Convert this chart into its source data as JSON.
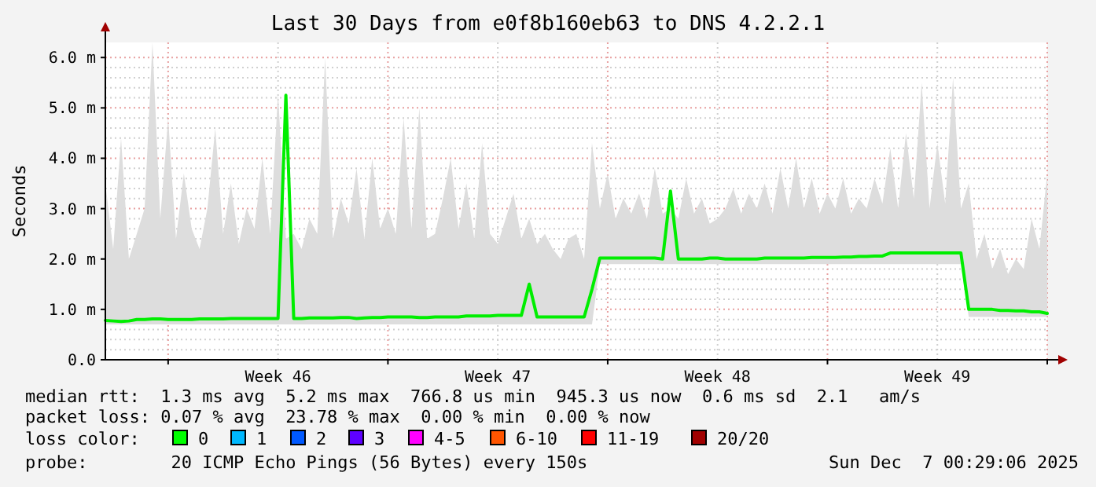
{
  "chart_data": {
    "type": "line",
    "title": "Last 30 Days from e0f8b160eb63 to DNS 4.2.2.1",
    "ylabel": "Seconds",
    "categories": [
      null,
      null,
      null,
      null,
      null,
      null,
      null,
      null,
      null,
      null,
      null,
      null,
      null,
      null,
      null,
      null,
      null,
      null,
      null,
      null,
      null,
      null,
      "Week 46",
      null,
      null,
      null,
      null,
      null,
      null,
      null,
      null,
      null,
      null,
      null,
      null,
      null,
      null,
      null,
      null,
      null,
      null,
      null,
      null,
      null,
      null,
      null,
      null,
      null,
      null,
      null,
      "Week 47",
      null,
      null,
      null,
      null,
      null,
      null,
      null,
      null,
      null,
      null,
      null,
      null,
      null,
      null,
      null,
      null,
      null,
      null,
      null,
      null,
      null,
      null,
      null,
      null,
      null,
      null,
      null,
      "Week 48",
      null,
      null,
      null,
      null,
      null,
      null,
      null,
      null,
      null,
      null,
      null,
      null,
      null,
      null,
      null,
      null,
      null,
      null,
      null,
      null,
      null,
      null,
      null,
      null,
      null,
      null,
      null,
      "Week 49",
      null,
      null,
      null,
      null,
      null,
      null,
      null,
      null,
      null,
      null,
      null,
      null,
      null,
      null
    ],
    "ylim": [
      0,
      6.3
    ],
    "yticks": [
      {
        "value": 0,
        "label": "0.0"
      },
      {
        "value": 1,
        "label": "1.0 m"
      },
      {
        "value": 2,
        "label": "2.0 m"
      },
      {
        "value": 3,
        "label": "3.0 m"
      },
      {
        "value": 4,
        "label": "4.0 m"
      },
      {
        "value": 5,
        "label": "5.0 m"
      },
      {
        "value": 6,
        "label": "6.0 m"
      }
    ],
    "grid": true,
    "series": [
      {
        "color": "#00ee00",
        "upper": [
          3.5,
          2.2,
          4.4,
          2.0,
          2.5,
          3.0,
          6.3,
          2.8,
          4.8,
          2.4,
          3.7,
          2.6,
          2.2,
          3.0,
          4.6,
          2.5,
          3.5,
          2.3,
          3.0,
          2.6,
          4.0,
          2.5,
          5.3,
          2.4,
          2.5,
          2.2,
          2.8,
          2.5,
          6.0,
          2.4,
          3.2,
          2.7,
          3.8,
          2.4,
          4.0,
          2.6,
          3.0,
          2.5,
          4.8,
          2.6,
          5.0,
          2.4,
          2.5,
          3.2,
          4.0,
          2.6,
          3.5,
          2.4,
          4.3,
          2.5,
          2.3,
          2.8,
          3.3,
          2.4,
          2.8,
          2.3,
          2.5,
          2.2,
          2.0,
          2.4,
          2.5,
          2.0,
          4.3,
          3.0,
          3.7,
          2.8,
          3.2,
          2.9,
          3.3,
          2.8,
          3.8,
          2.9,
          3.0,
          2.8,
          3.6,
          2.9,
          3.2,
          2.7,
          2.8,
          3.0,
          3.4,
          2.9,
          3.3,
          3.0,
          3.5,
          2.9,
          3.8,
          3.0,
          4.0,
          3.0,
          3.6,
          2.9,
          3.3,
          3.0,
          3.6,
          2.9,
          3.2,
          3.0,
          3.6,
          3.1,
          4.2,
          3.0,
          4.5,
          3.2,
          5.5,
          3.0,
          4.3,
          3.1,
          5.6,
          3.0,
          3.5,
          2.0,
          2.5,
          1.8,
          2.2,
          1.7,
          2.0,
          1.8,
          2.8,
          2.2,
          3.7
        ],
        "lower": [
          0.7,
          0.7,
          0.7,
          0.7,
          0.7,
          0.7,
          0.7,
          0.7,
          0.7,
          0.7,
          0.7,
          0.7,
          0.7,
          0.7,
          0.7,
          0.7,
          0.7,
          0.7,
          0.7,
          0.7,
          0.7,
          0.7,
          0.7,
          0.7,
          0.7,
          0.7,
          0.7,
          0.7,
          0.7,
          0.7,
          0.7,
          0.7,
          0.7,
          0.7,
          0.7,
          0.7,
          0.7,
          0.7,
          0.7,
          0.7,
          0.7,
          0.7,
          0.7,
          0.7,
          0.7,
          0.7,
          0.7,
          0.7,
          0.7,
          0.7,
          0.7,
          0.7,
          0.7,
          0.7,
          0.7,
          0.7,
          0.7,
          0.7,
          0.7,
          0.7,
          0.7,
          0.7,
          0.7,
          1.9,
          1.9,
          1.9,
          1.9,
          1.9,
          1.9,
          1.9,
          1.9,
          1.9,
          1.9,
          1.9,
          1.9,
          1.9,
          1.9,
          1.9,
          1.9,
          1.9,
          1.9,
          1.9,
          1.9,
          1.9,
          1.9,
          1.9,
          1.9,
          1.9,
          1.9,
          1.9,
          1.9,
          1.9,
          1.9,
          1.9,
          1.9,
          1.9,
          1.9,
          1.9,
          1.9,
          1.9,
          1.9,
          1.9,
          1.9,
          1.9,
          1.9,
          1.9,
          1.9,
          1.9,
          1.9,
          1.9,
          0.85,
          0.85,
          0.85,
          0.85,
          0.85,
          0.85,
          0.85,
          0.85,
          0.85,
          0.85,
          0.85
        ],
        "values": [
          0.78,
          0.77,
          0.76,
          0.77,
          0.8,
          0.8,
          0.81,
          0.81,
          0.8,
          0.8,
          0.8,
          0.8,
          0.81,
          0.81,
          0.81,
          0.81,
          0.82,
          0.82,
          0.82,
          0.82,
          0.82,
          0.82,
          0.82,
          5.25,
          0.82,
          0.82,
          0.83,
          0.83,
          0.83,
          0.83,
          0.84,
          0.84,
          0.82,
          0.83,
          0.84,
          0.84,
          0.85,
          0.85,
          0.85,
          0.85,
          0.84,
          0.84,
          0.85,
          0.85,
          0.85,
          0.85,
          0.87,
          0.87,
          0.87,
          0.87,
          0.88,
          0.88,
          0.88,
          0.88,
          1.5,
          0.85,
          0.85,
          0.85,
          0.85,
          0.85,
          0.85,
          0.85,
          1.4,
          2.02,
          2.02,
          2.02,
          2.02,
          2.02,
          2.02,
          2.02,
          2.02,
          2.0,
          3.35,
          2.0,
          2.0,
          2.0,
          2.0,
          2.02,
          2.02,
          2.0,
          2.0,
          2.0,
          2.0,
          2.0,
          2.02,
          2.02,
          2.02,
          2.02,
          2.02,
          2.02,
          2.03,
          2.03,
          2.03,
          2.03,
          2.04,
          2.04,
          2.05,
          2.05,
          2.06,
          2.06,
          2.12,
          2.12,
          2.12,
          2.12,
          2.12,
          2.12,
          2.12,
          2.12,
          2.12,
          2.12,
          1.0,
          1.0,
          1.0,
          1.0,
          0.98,
          0.98,
          0.97,
          0.97,
          0.95,
          0.95,
          0.92
        ]
      }
    ],
    "annotations": [
      "median rtt:  1.3 ms avg  5.2 ms max  766.8 us min  945.3 us now  0.6 ms sd  2.1   am/s",
      "packet loss: 0.07 % avg  23.78 % max  0.00 % min  0.00 % now",
      "loss color:",
      "0",
      "1",
      "2",
      "3",
      "4-5",
      "6-10",
      "11-19",
      "20/20",
      "probe:        20 ICMP Echo Pings (56 Bytes) every 150s",
      "Sun Dec  7 00:29:06 2025"
    ]
  }
}
